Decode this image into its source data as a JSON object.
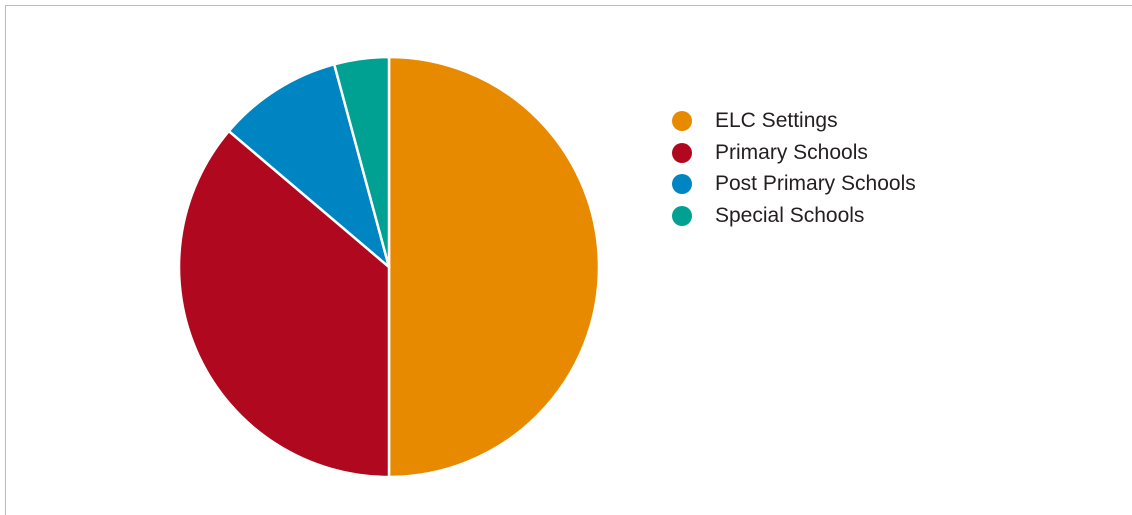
{
  "chart_data": {
    "type": "pie",
    "title": "",
    "start": "12 o'clock",
    "direction": "clockwise",
    "legend_position": "right",
    "series": [
      {
        "name": "ELC Settings",
        "value": 50.0,
        "color": "#e88a00"
      },
      {
        "name": "Primary Schools",
        "value": 36.2,
        "color": "#b0081e"
      },
      {
        "name": "Post Primary Schools",
        "value": 9.6,
        "color": "#0085c3"
      },
      {
        "name": "Special Schools",
        "value": 4.2,
        "color": "#00a193"
      }
    ]
  }
}
